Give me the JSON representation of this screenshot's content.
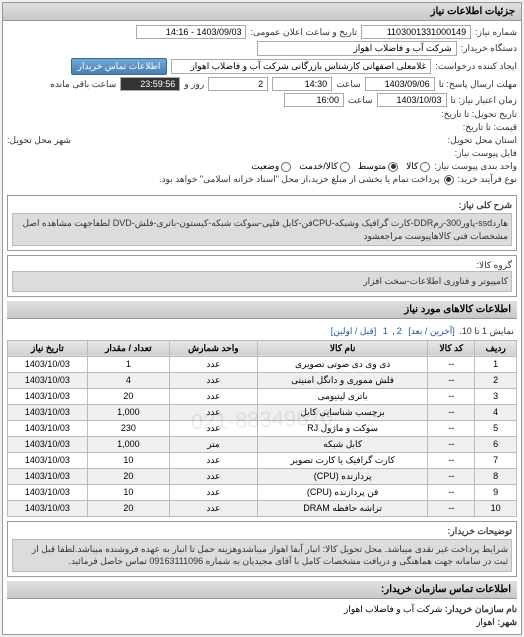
{
  "header": {
    "title": "جزئیات اطلاعات نیاز"
  },
  "form": {
    "request_num_label": "شماره نیاز:",
    "request_num": "1103001331000149",
    "announce_label": "تاریخ و ساعت اعلان عمومی:",
    "announce_value": "1403/09/03 - 14:16",
    "buyer_label": "دستگاه خریدار:",
    "buyer_value": "شرکت آب و فاضلاب اهواز",
    "requester_label": "ایجاد کننده درخواست:",
    "requester_value": "غلامعلی اصفهانی کارشناس بازرگانی شرکت آب و فاضلاب اهواز",
    "contact_btn": "اطلاعات تماس خریدار",
    "deadline_send_label": "مهلت ارسال پاسخ: تا",
    "deadline_send_date": "1403/09/06",
    "time_label1": "ساعت",
    "deadline_send_time": "14:30",
    "remain_days": "2",
    "remain_days_label": "روز و",
    "remain_time": "23:59:56",
    "remain_label": "ساعت باقی مانده",
    "validity_label": "زمان اعتبار نیاز: تا",
    "validity_date": "1403/10/03",
    "time_label2": "ساعت",
    "validity_time": "16:00",
    "receive_date_label": "تاریخ تحویل: تا تاریخ:",
    "price_label": "قیمت: تا تاریخ:",
    "delivery_addr_label": "استان محل تحویل:",
    "delivery_addr2_label": "شهر محل تحویل:",
    "ref_label": "فایل پیوست نیاز:",
    "unit_label": "واحد بندی پیوست نیاز:",
    "unit_opts": [
      "کالا",
      "متوسط",
      "کالا/خدمت",
      "وضعیت"
    ],
    "unit_selected": 1,
    "payment_label": "نوع فرآیند خرید:",
    "payment_text": "پرداخت تمام یا بخشی از مبلغ خرید،از محل \"اسناد خزانه اسلامی\" خواهد بود."
  },
  "desc1": {
    "label": "شرح کلی نیاز:",
    "text": "هاردssd-پاور300-رمDDR-کارت گرافیک وشبکه-CPUفن-کابل فلپی-سوکت شبکه-کیستون-باتری-فلش-DVD لطفاجهت مشاهده اصل مشخصات فنی کالاهاپیوست مراجعشود"
  },
  "group": {
    "label": "گروه کالا:",
    "value": "کامپیوتر و فناوری اطلاعات-سخت افزار"
  },
  "table": {
    "title": "اطلاعات کالاهای مورد نیاز",
    "paging": "نمایش 1 تا 10.",
    "paging_links": [
      "[آخرین / بعد]",
      "2",
      "1",
      "[قبل / اولین]"
    ],
    "columns": [
      "ردیف",
      "کد کالا",
      "نام کالا",
      "واحد شمارش",
      "تعداد / مقدار",
      "تاریخ نیاز"
    ],
    "rows": [
      [
        "1",
        "--",
        "دی وی دی صوتی تصویری",
        "عدد",
        "1",
        "1403/10/03"
      ],
      [
        "2",
        "--",
        "فلش مموری و دانگل امنیتی",
        "عدد",
        "4",
        "1403/10/03"
      ],
      [
        "3",
        "--",
        "باتری لیتیومی",
        "عدد",
        "20",
        "1403/10/03"
      ],
      [
        "4",
        "--",
        "برچسب شناسایی کابل",
        "عدد",
        "1,000",
        "1403/10/03"
      ],
      [
        "5",
        "--",
        "سوکت و ماژول RJ",
        "عدد",
        "230",
        "1403/10/03"
      ],
      [
        "6",
        "--",
        "کابل شبکه",
        "متر",
        "1,000",
        "1403/10/03"
      ],
      [
        "7",
        "--",
        "کارت گرافیک یا کارت تصویر",
        "عدد",
        "10",
        "1403/10/03"
      ],
      [
        "8",
        "--",
        "پردازنده (CPU)",
        "عدد",
        "20",
        "1403/10/03"
      ],
      [
        "9",
        "--",
        "فن پردازنده (CPU)",
        "عدد",
        "10",
        "1403/10/03"
      ],
      [
        "10",
        "--",
        "تراشه حافظه DRAM",
        "عدد",
        "20",
        "1403/10/03"
      ]
    ]
  },
  "notes": {
    "label": "توضیحات خریدار:",
    "text": "شرایط پرداخت غیر نقدی میباشد. محل تحویل کالا: انبار آبفا اهواز میباشدوهزینه حمل تا انبار به عهده فروشنده میباشد.لطفا قبل از ثبت در سامانه جهت هماهنگی و دریافت مشخصات کامل با آقای مجیدیان به شماره 09163111096 تماس حاصل فرمائید."
  },
  "contact": {
    "header": "اطلاعات تماس سازمان خریدار:",
    "org_label": "نام سازمان خریدار:",
    "org_value": "شرکت آب و فاضلاب اهواز",
    "city_label": "شهر:",
    "city_value": "اهواز"
  },
  "colors": {
    "panel_border": "#999999",
    "header_bg1": "#e0e0e0",
    "header_bg2": "#c8c8c8",
    "btn_bg1": "#6fa8d6",
    "btn_bg2": "#4a7fb0",
    "link": "#2255aa",
    "remain_time_bg": "#333333",
    "remain_time_fg": "#ffffff"
  }
}
